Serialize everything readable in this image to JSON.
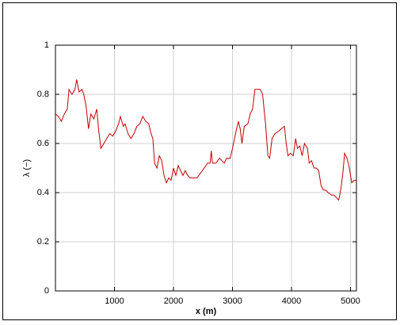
{
  "chart_data": {
    "type": "line",
    "xlabel": "x (m)",
    "ylabel": "λ (−)",
    "xlim": [
      0,
      5100
    ],
    "xticks": [
      1000,
      2000,
      3000,
      4000,
      5000
    ],
    "ylim": [
      0,
      1
    ],
    "yticks": [
      0,
      0.2,
      0.4,
      0.6,
      0.8,
      1
    ],
    "grid": true,
    "x": [
      0,
      50,
      100,
      150,
      200,
      230,
      280,
      330,
      360,
      400,
      450,
      480,
      520,
      560,
      600,
      650,
      700,
      730,
      770,
      820,
      870,
      920,
      970,
      1020,
      1070,
      1100,
      1150,
      1180,
      1230,
      1280,
      1330,
      1380,
      1430,
      1480,
      1530,
      1580,
      1620,
      1650,
      1680,
      1720,
      1760,
      1800,
      1840,
      1880,
      1920,
      1960,
      2000,
      2040,
      2080,
      2120,
      2160,
      2200,
      2240,
      2280,
      2340,
      2400,
      2460,
      2520,
      2580,
      2620,
      2640,
      2660,
      2720,
      2780,
      2820,
      2860,
      2900,
      2960,
      3000,
      3060,
      3100,
      3130,
      3160,
      3200,
      3260,
      3300,
      3340,
      3380,
      3420,
      3470,
      3510,
      3560,
      3600,
      3630,
      3670,
      3720,
      3780,
      3830,
      3880,
      3910,
      3940,
      3980,
      4030,
      4070,
      4100,
      4140,
      4180,
      4220,
      4270,
      4300,
      4340,
      4380,
      4420,
      4460,
      4500,
      4540,
      4580,
      4620,
      4680,
      4720,
      4760,
      4800,
      4840,
      4870,
      4900,
      4940,
      4980,
      5020,
      5060,
      5100
    ],
    "series": [
      {
        "name": "λ",
        "color": "#c00000",
        "values": [
          0.72,
          0.71,
          0.69,
          0.72,
          0.74,
          0.82,
          0.8,
          0.82,
          0.86,
          0.81,
          0.82,
          0.8,
          0.75,
          0.66,
          0.72,
          0.7,
          0.74,
          0.66,
          0.58,
          0.6,
          0.62,
          0.64,
          0.63,
          0.65,
          0.68,
          0.71,
          0.67,
          0.68,
          0.64,
          0.62,
          0.64,
          0.67,
          0.68,
          0.71,
          0.69,
          0.68,
          0.64,
          0.62,
          0.52,
          0.5,
          0.55,
          0.53,
          0.47,
          0.44,
          0.46,
          0.45,
          0.5,
          0.47,
          0.51,
          0.49,
          0.47,
          0.49,
          0.47,
          0.46,
          0.46,
          0.46,
          0.48,
          0.5,
          0.52,
          0.52,
          0.57,
          0.52,
          0.52,
          0.54,
          0.53,
          0.52,
          0.54,
          0.54,
          0.58,
          0.65,
          0.69,
          0.66,
          0.6,
          0.67,
          0.68,
          0.72,
          0.74,
          0.82,
          0.82,
          0.82,
          0.8,
          0.68,
          0.55,
          0.54,
          0.62,
          0.64,
          0.65,
          0.66,
          0.67,
          0.6,
          0.55,
          0.56,
          0.55,
          0.62,
          0.58,
          0.59,
          0.55,
          0.6,
          0.58,
          0.52,
          0.53,
          0.5,
          0.5,
          0.49,
          0.43,
          0.41,
          0.41,
          0.4,
          0.39,
          0.39,
          0.38,
          0.37,
          0.42,
          0.48,
          0.56,
          0.54,
          0.5,
          0.44,
          0.45,
          0.45
        ]
      }
    ]
  }
}
